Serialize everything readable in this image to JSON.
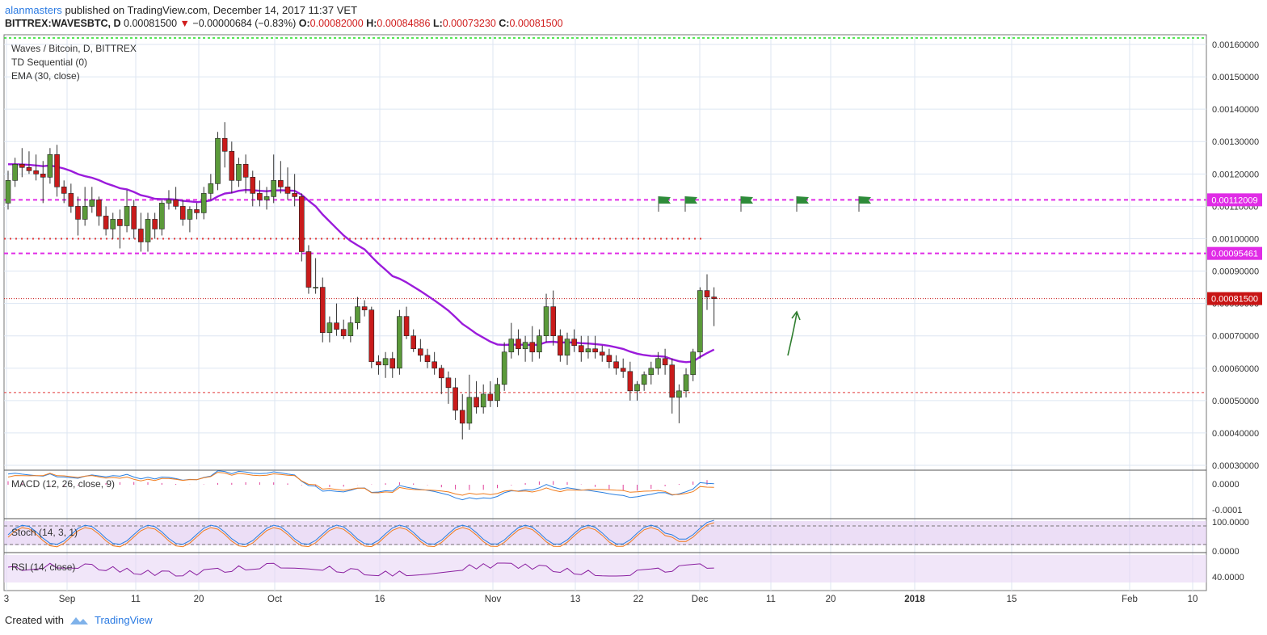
{
  "header": {
    "author": "alanmasters",
    "published": "published on TradingView.com, December 14, 2017 11:37 VET",
    "symbol": "BITTREX:WAVESBTC, D",
    "last": "0.00081500",
    "arrow": "▼",
    "change": "−0.00000684 (−0.83%)",
    "o_label": "O:",
    "o": "0.00082000",
    "h_label": "H:",
    "h": "0.00084886",
    "l_label": "L:",
    "l": "0.00073230",
    "c_label": "C:",
    "c": "0.00081500"
  },
  "footer": {
    "created_with": "Created with",
    "brand": "TradingView"
  },
  "chart_data": {
    "type": "candlestick",
    "legend": [
      "Waves / Bitcoin, D, BITTREX",
      "TD Sequential (0)",
      "EMA (30, close)"
    ],
    "y_ticks": [
      "0.00160000",
      "0.00150000",
      "0.00140000",
      "0.00130000",
      "0.00120000",
      "0.00110000",
      "0.00100000",
      "0.00090000",
      "0.00080000",
      "0.00070000",
      "0.00060000",
      "0.00050000",
      "0.00040000",
      "0.00030000"
    ],
    "ylim": [
      0.0003,
      0.00163
    ],
    "price_tags": [
      {
        "label": "0.00112009",
        "value": 0.00112009,
        "color": "#e02ce6"
      },
      {
        "label": "0.00095461",
        "value": 0.00095461,
        "color": "#e02ce6"
      },
      {
        "label": "0.00081500",
        "value": 0.000815,
        "color": "#c81414"
      }
    ],
    "x_ticks": [
      "3",
      "Sep",
      "11",
      "20",
      "Oct",
      "16",
      "Nov",
      "13",
      "22",
      "Dec",
      "11",
      "20",
      "2018",
      "15",
      "Feb",
      "10"
    ],
    "candles": [
      [
        0.00111,
        0.00121,
        0.00109,
        0.00118
      ],
      [
        0.00118,
        0.00125,
        0.00116,
        0.00123
      ],
      [
        0.00123,
        0.00128,
        0.00119,
        0.00122
      ],
      [
        0.00122,
        0.00127,
        0.0012,
        0.00121
      ],
      [
        0.00121,
        0.00126,
        0.00118,
        0.0012
      ],
      [
        0.0012,
        0.00124,
        0.00111,
        0.00119
      ],
      [
        0.00119,
        0.00128,
        0.00117,
        0.00126
      ],
      [
        0.00126,
        0.00129,
        0.00113,
        0.00116
      ],
      [
        0.00116,
        0.00118,
        0.00111,
        0.00114
      ],
      [
        0.00114,
        0.00117,
        0.00108,
        0.0011
      ],
      [
        0.0011,
        0.00113,
        0.00101,
        0.00106
      ],
      [
        0.00106,
        0.00116,
        0.00104,
        0.0011
      ],
      [
        0.0011,
        0.00116,
        0.00108,
        0.00112
      ],
      [
        0.00112,
        0.00113,
        0.00104,
        0.00107
      ],
      [
        0.00107,
        0.0011,
        0.00101,
        0.00103
      ],
      [
        0.00103,
        0.00108,
        0.001,
        0.00106
      ],
      [
        0.00106,
        0.00109,
        0.00097,
        0.00104
      ],
      [
        0.00104,
        0.00115,
        0.00102,
        0.0011
      ],
      [
        0.0011,
        0.00112,
        0.001,
        0.00103
      ],
      [
        0.00103,
        0.00108,
        0.00096,
        0.00099
      ],
      [
        0.00099,
        0.00108,
        0.00096,
        0.00106
      ],
      [
        0.00106,
        0.00108,
        0.001,
        0.00103
      ],
      [
        0.00103,
        0.00112,
        0.00101,
        0.00111
      ],
      [
        0.00111,
        0.00115,
        0.00109,
        0.00112
      ],
      [
        0.00112,
        0.00116,
        0.00109,
        0.0011
      ],
      [
        0.0011,
        0.00112,
        0.00104,
        0.00106
      ],
      [
        0.00106,
        0.0011,
        0.00102,
        0.00109
      ],
      [
        0.00109,
        0.00111,
        0.00106,
        0.00108
      ],
      [
        0.00108,
        0.00116,
        0.00106,
        0.00114
      ],
      [
        0.00114,
        0.0012,
        0.00112,
        0.00117
      ],
      [
        0.00117,
        0.00133,
        0.00115,
        0.00131
      ],
      [
        0.00131,
        0.00136,
        0.00122,
        0.00127
      ],
      [
        0.00127,
        0.0013,
        0.00114,
        0.00118
      ],
      [
        0.00118,
        0.00125,
        0.00116,
        0.00123
      ],
      [
        0.00123,
        0.00126,
        0.00114,
        0.00119
      ],
      [
        0.00119,
        0.00121,
        0.0011,
        0.00114
      ],
      [
        0.00114,
        0.00118,
        0.0011,
        0.00112
      ],
      [
        0.00112,
        0.00116,
        0.00109,
        0.00113
      ],
      [
        0.00113,
        0.00126,
        0.00111,
        0.00118
      ],
      [
        0.00118,
        0.00124,
        0.00114,
        0.00116
      ],
      [
        0.00116,
        0.00122,
        0.00112,
        0.00114
      ],
      [
        0.00114,
        0.0012,
        0.0011,
        0.00113
      ],
      [
        0.00113,
        0.00114,
        0.00093,
        0.00096
      ],
      [
        0.00096,
        0.00098,
        0.00083,
        0.00085
      ],
      [
        0.00085,
        0.00094,
        0.00083,
        0.00085
      ],
      [
        0.00085,
        0.00088,
        0.00068,
        0.00071
      ],
      [
        0.00071,
        0.00076,
        0.00068,
        0.00074
      ],
      [
        0.00074,
        0.0008,
        0.0007,
        0.00072
      ],
      [
        0.00072,
        0.00075,
        0.00069,
        0.0007
      ],
      [
        0.0007,
        0.00076,
        0.00068,
        0.00074
      ],
      [
        0.00074,
        0.00082,
        0.00072,
        0.00079
      ],
      [
        0.00079,
        0.00081,
        0.00076,
        0.00078
      ],
      [
        0.00078,
        0.00079,
        0.0006,
        0.00062
      ],
      [
        0.00062,
        0.00064,
        0.00058,
        0.00061
      ],
      [
        0.00061,
        0.00065,
        0.00057,
        0.00063
      ],
      [
        0.00063,
        0.00065,
        0.00057,
        0.0006
      ],
      [
        0.0006,
        0.00078,
        0.00058,
        0.00076
      ],
      [
        0.00076,
        0.00079,
        0.00069,
        0.0007
      ],
      [
        0.0007,
        0.00072,
        0.00065,
        0.00066
      ],
      [
        0.00066,
        0.00069,
        0.00062,
        0.00064
      ],
      [
        0.00064,
        0.00066,
        0.0006,
        0.00062
      ],
      [
        0.00062,
        0.00065,
        0.00058,
        0.0006
      ],
      [
        0.0006,
        0.00061,
        0.00052,
        0.00057
      ],
      [
        0.00057,
        0.00059,
        0.00049,
        0.00054
      ],
      [
        0.00054,
        0.00057,
        0.00044,
        0.00047
      ],
      [
        0.00047,
        0.00052,
        0.00038,
        0.00043
      ],
      [
        0.00043,
        0.00058,
        0.00041,
        0.00051
      ],
      [
        0.00051,
        0.00056,
        0.00046,
        0.00048
      ],
      [
        0.00048,
        0.00055,
        0.00046,
        0.00052
      ],
      [
        0.00052,
        0.00056,
        0.00048,
        0.0005
      ],
      [
        0.0005,
        0.00057,
        0.00048,
        0.00055
      ],
      [
        0.00055,
        0.00068,
        0.00053,
        0.00065
      ],
      [
        0.00065,
        0.00074,
        0.00063,
        0.00069
      ],
      [
        0.00069,
        0.00072,
        0.00064,
        0.00066
      ],
      [
        0.00066,
        0.0007,
        0.00062,
        0.00068
      ],
      [
        0.00068,
        0.00073,
        0.00062,
        0.00065
      ],
      [
        0.00065,
        0.00072,
        0.00063,
        0.0007
      ],
      [
        0.0007,
        0.00083,
        0.00068,
        0.00079
      ],
      [
        0.00079,
        0.00084,
        0.00067,
        0.0007
      ],
      [
        0.0007,
        0.00072,
        0.00062,
        0.00064
      ],
      [
        0.00064,
        0.00071,
        0.00061,
        0.00069
      ],
      [
        0.00069,
        0.00072,
        0.00065,
        0.00067
      ],
      [
        0.00067,
        0.0007,
        0.00062,
        0.00065
      ],
      [
        0.00065,
        0.0007,
        0.00063,
        0.00066
      ],
      [
        0.00066,
        0.0007,
        0.00063,
        0.00065
      ],
      [
        0.00065,
        0.00067,
        0.00062,
        0.00064
      ],
      [
        0.00064,
        0.00066,
        0.0006,
        0.00062
      ],
      [
        0.00062,
        0.00064,
        0.00058,
        0.0006
      ],
      [
        0.0006,
        0.00063,
        0.00057,
        0.00059
      ],
      [
        0.00059,
        0.00062,
        0.0005,
        0.00053
      ],
      [
        0.00053,
        0.00056,
        0.0005,
        0.00055
      ],
      [
        0.00055,
        0.00059,
        0.00053,
        0.00058
      ],
      [
        0.00058,
        0.00062,
        0.00055,
        0.0006
      ],
      [
        0.0006,
        0.00065,
        0.00058,
        0.00063
      ],
      [
        0.00063,
        0.00066,
        0.00058,
        0.00061
      ],
      [
        0.00061,
        0.00063,
        0.00046,
        0.00051
      ],
      [
        0.00051,
        0.00055,
        0.00043,
        0.00053
      ],
      [
        0.00053,
        0.0006,
        0.00051,
        0.00058
      ],
      [
        0.00058,
        0.00066,
        0.00056,
        0.00065
      ],
      [
        0.00065,
        0.00085,
        0.00063,
        0.00084
      ],
      [
        0.00084,
        0.00089,
        0.00078,
        0.00082
      ],
      [
        0.00082,
        0.00085,
        0.00073,
        0.000815
      ]
    ],
    "horizontal_levels": [
      0.00162,
      0.00112009,
      0.001,
      0.00095461,
      0.000815,
      0.000525
    ],
    "macd": {
      "label": "MACD (12, 26, close, 9)",
      "ticks": [
        "0.0000",
        "-0.0001"
      ]
    },
    "stoch": {
      "label": "Stoch (14, 3, 1)",
      "ticks": [
        "100.0000",
        "0.0000"
      ]
    },
    "rsi": {
      "label": "RSI (14, close)",
      "ticks": [
        "40.0000"
      ]
    }
  }
}
